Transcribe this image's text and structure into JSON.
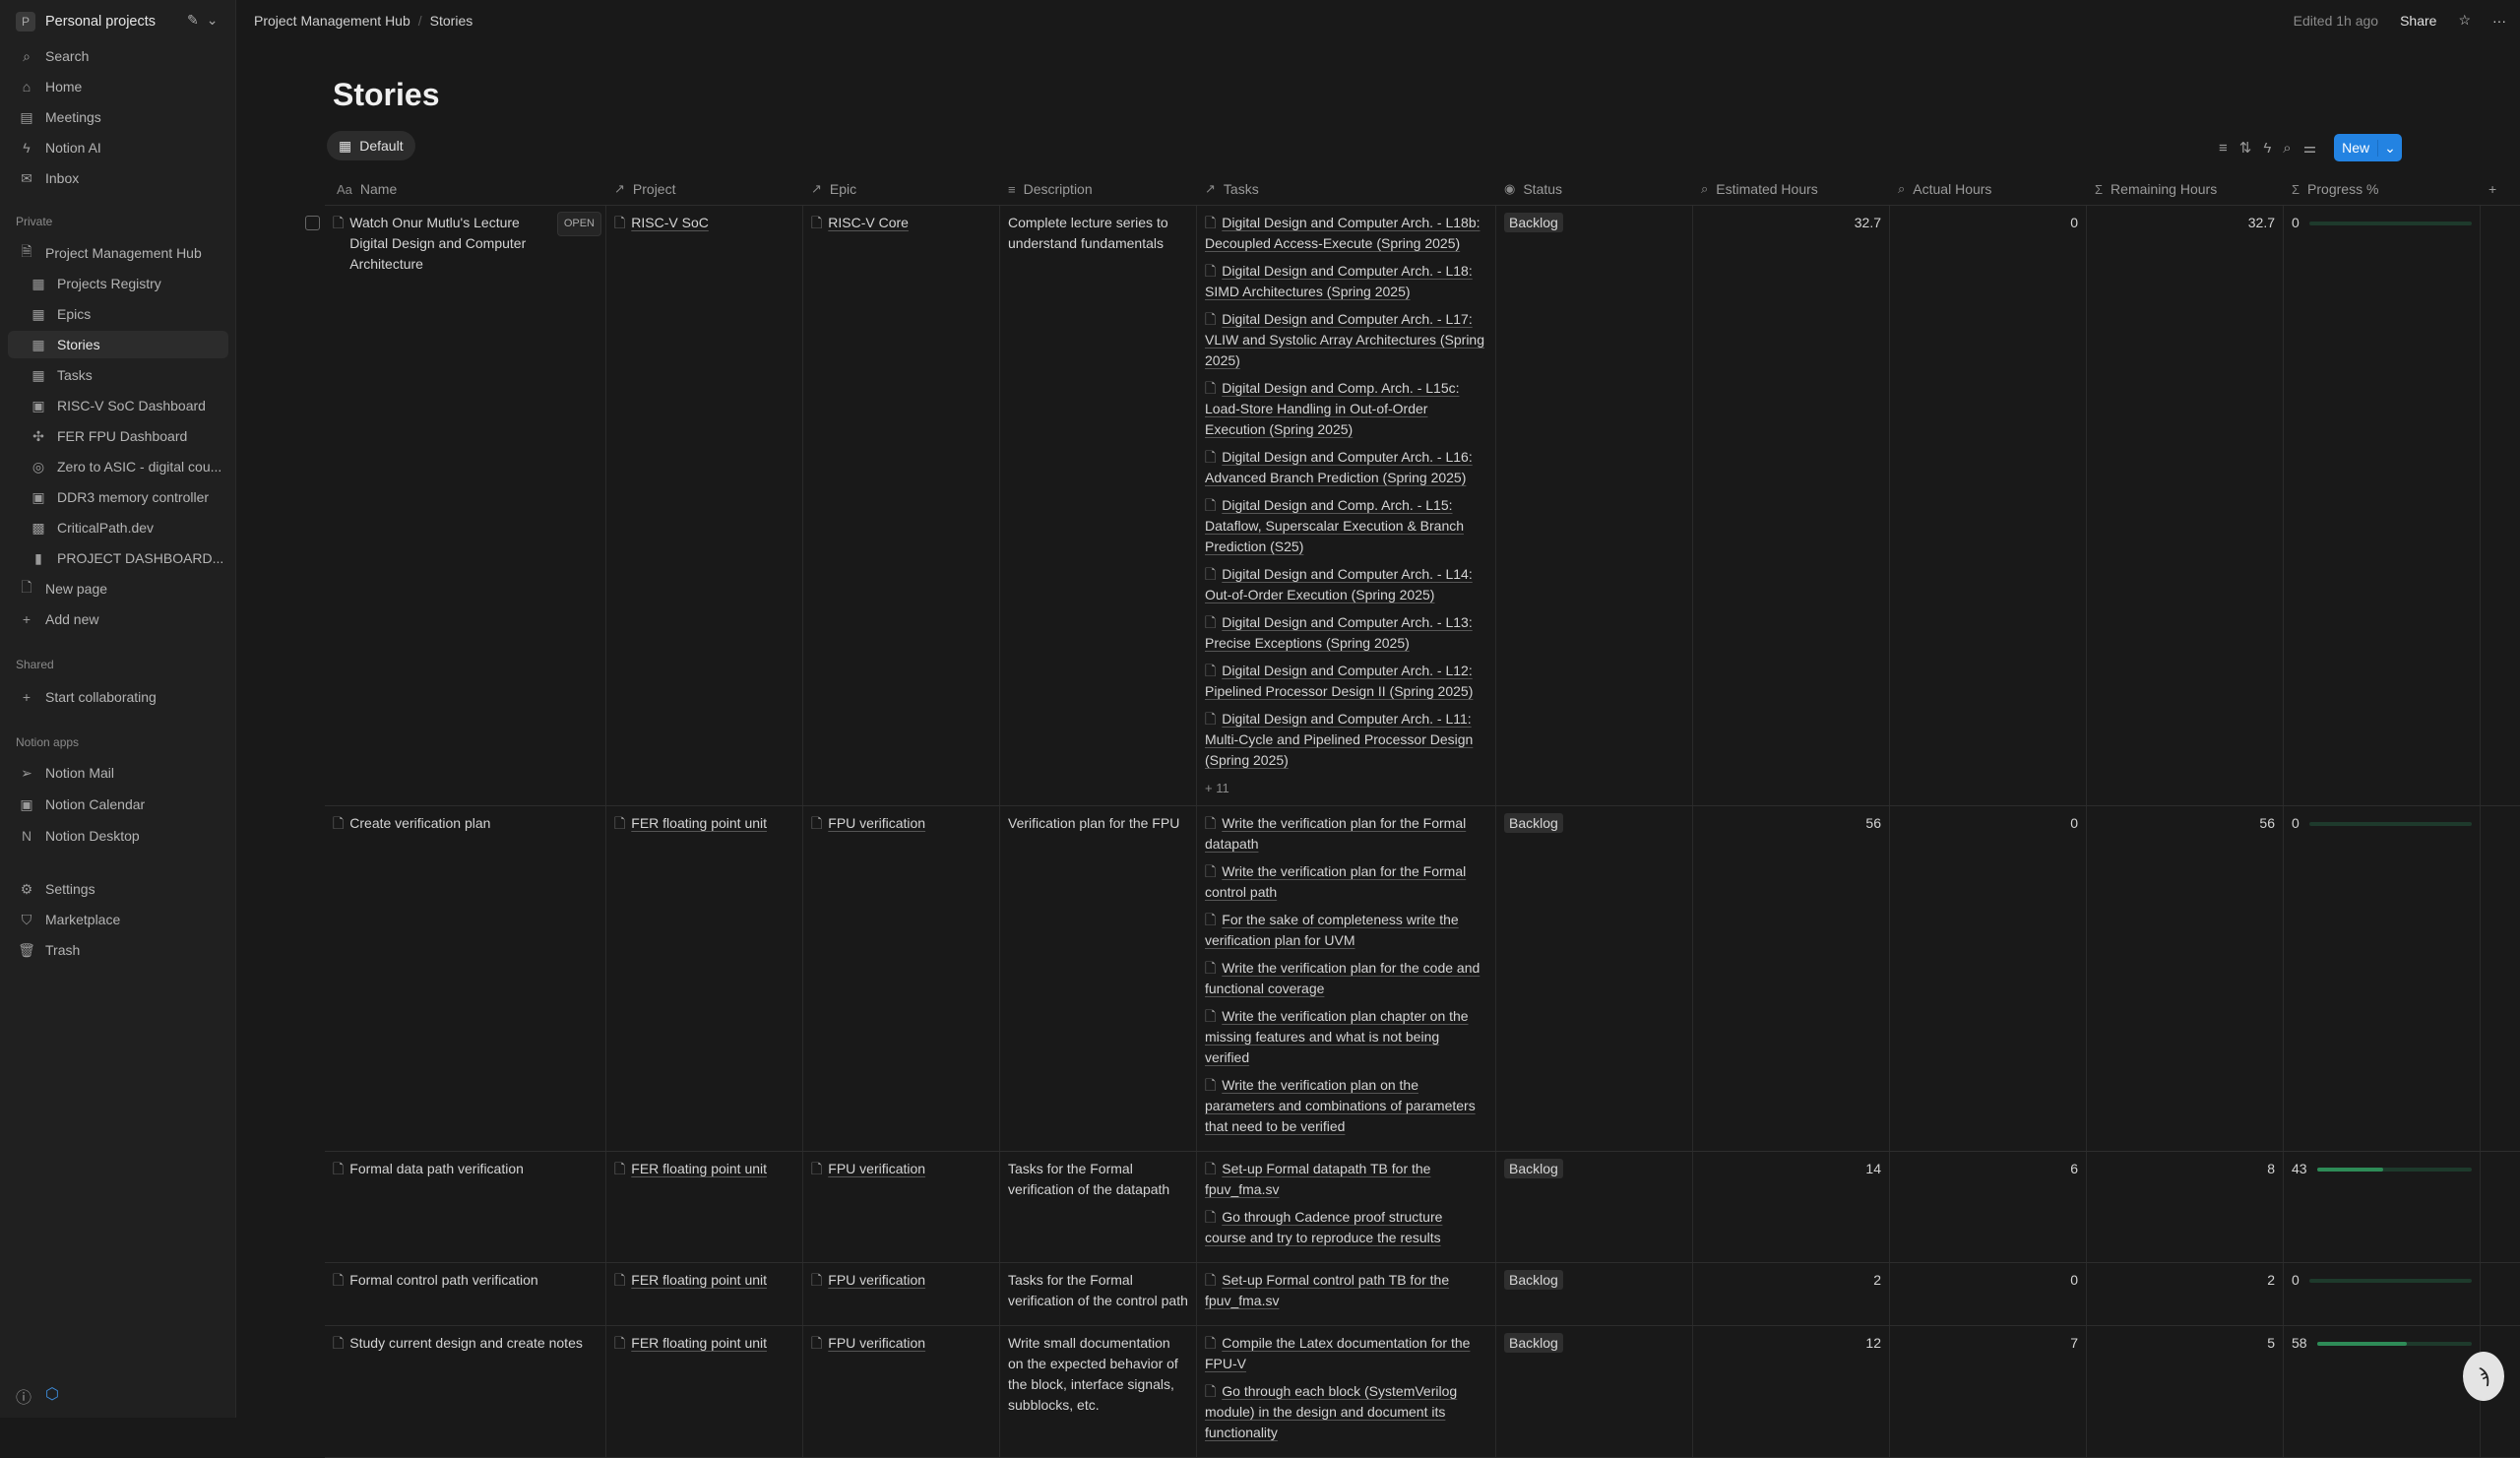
{
  "workspace": {
    "initial": "P",
    "name": "Personal projects"
  },
  "sidebar": {
    "top": [
      {
        "icon": "search-icon",
        "g": "⌕",
        "label": "Search"
      },
      {
        "icon": "home-icon",
        "g": "⌂",
        "label": "Home"
      },
      {
        "icon": "meetings-icon",
        "g": "▤",
        "label": "Meetings"
      },
      {
        "icon": "notion-ai-icon",
        "g": "ϟ",
        "label": "Notion AI"
      },
      {
        "icon": "inbox-icon",
        "g": "✉",
        "label": "Inbox"
      }
    ],
    "private_label": "Private",
    "private": [
      {
        "label": "Project Management Hub",
        "g": "🗎",
        "sub": false
      },
      {
        "label": "Projects Registry",
        "g": "▦",
        "sub": true
      },
      {
        "label": "Epics",
        "g": "▦",
        "sub": true
      },
      {
        "label": "Stories",
        "g": "▦",
        "sub": true,
        "active": true
      },
      {
        "label": "Tasks",
        "g": "▦",
        "sub": true
      },
      {
        "label": "RISC-V SoC Dashboard",
        "g": "▣",
        "sub": true
      },
      {
        "label": "FER FPU Dashboard",
        "g": "✣",
        "sub": true
      },
      {
        "label": "Zero to ASIC - digital cou...",
        "g": "◎",
        "sub": true
      },
      {
        "label": "DDR3 memory controller",
        "g": "▣",
        "sub": true
      },
      {
        "label": "CriticalPath.dev",
        "g": "▩",
        "sub": true
      },
      {
        "label": "PROJECT DASHBOARD...",
        "g": "▮",
        "sub": true
      },
      {
        "label": "New page",
        "g": "🗋",
        "sub": false
      },
      {
        "label": "Add new",
        "g": "+",
        "sub": false
      }
    ],
    "shared_label": "Shared",
    "shared": [
      {
        "label": "Start collaborating",
        "g": "+"
      }
    ],
    "apps_label": "Notion apps",
    "apps": [
      {
        "label": "Notion Mail",
        "g": "➢"
      },
      {
        "label": "Notion Calendar",
        "g": "▣"
      },
      {
        "label": "Notion Desktop",
        "g": "N"
      }
    ],
    "bottom": [
      {
        "label": "Settings",
        "g": "⚙"
      },
      {
        "label": "Marketplace",
        "g": "⛉"
      },
      {
        "label": "Trash",
        "g": "🗑"
      }
    ]
  },
  "breadcrumb": [
    "Project Management Hub",
    "Stories"
  ],
  "topright": {
    "edited": "Edited 1h ago",
    "share": "Share"
  },
  "page": {
    "title": "Stories",
    "view": "Default",
    "new_label": "New"
  },
  "columns": [
    {
      "label": "Name",
      "icon": "Aa"
    },
    {
      "label": "Project",
      "icon": "↗"
    },
    {
      "label": "Epic",
      "icon": "↗"
    },
    {
      "label": "Description",
      "icon": "≡"
    },
    {
      "label": "Tasks",
      "icon": "↗"
    },
    {
      "label": "Status",
      "icon": "◉"
    },
    {
      "label": "Estimated Hours",
      "icon": "⌕"
    },
    {
      "label": "Actual Hours",
      "icon": "⌕"
    },
    {
      "label": "Remaining Hours",
      "icon": "Σ"
    },
    {
      "label": "Progress %",
      "icon": "Σ"
    }
  ],
  "open_label": "OPEN",
  "rows": [
    {
      "name": "Watch Onur Mutlu's Lecture Digital Design and Computer Architecture",
      "project": "RISC-V SoC",
      "epic": "RISC-V Core",
      "description": "Complete lecture series to understand fundamentals",
      "tasks": [
        "Digital Design and Computer Arch. - L18b: Decoupled Access-Execute (Spring 2025)",
        "Digital Design and Computer Arch. - L18: SIMD Architectures (Spring 2025)",
        "Digital Design and Computer Arch. - L17: VLIW and Systolic Array Architectures (Spring 2025)",
        "Digital Design and Comp. Arch. - L15c: Load-Store Handling in Out-of-Order Execution (Spring 2025)",
        "Digital Design and Computer Arch. - L16: Advanced Branch Prediction (Spring 2025)",
        "Digital Design and Comp. Arch. - L15: Dataflow, Superscalar Execution & Branch Prediction (S25)",
        "Digital Design and Computer Arch. - L14: Out-of-Order Execution (Spring 2025)",
        "Digital Design and Computer Arch. - L13: Precise Exceptions (Spring 2025)",
        "Digital Design and Computer Arch. - L12: Pipelined Processor Design II (Spring 2025)",
        "Digital Design and Computer Arch. - L11: Multi-Cycle and Pipelined Processor Design (Spring 2025)"
      ],
      "more": "+ 11",
      "status": "Backlog",
      "estimated": "32.7",
      "actual": "0",
      "remaining": "32.7",
      "progress": 0
    },
    {
      "name": "Create verification plan",
      "project": "FER floating point unit",
      "epic": "FPU verification",
      "description": "Verification plan for the FPU",
      "tasks": [
        "Write the verification plan for the Formal datapath",
        "Write the verification plan for the Formal control path",
        "For the sake of completeness write the verification plan for UVM",
        "Write the verification plan for the code and functional coverage",
        "Write the verification plan chapter on the missing features and what is not being verified",
        "Write the verification plan on the parameters and combinations of parameters that need to be verified"
      ],
      "status": "Backlog",
      "estimated": "56",
      "actual": "0",
      "remaining": "56",
      "progress": 0
    },
    {
      "name": "Formal data path verification",
      "project": "FER floating point unit",
      "epic": "FPU verification",
      "description": "Tasks for the Formal verification of the datapath",
      "tasks": [
        "Set-up Formal datapath TB for the fpuv_fma.sv",
        "Go through Cadence proof structure course and try to reproduce the results"
      ],
      "status": "Backlog",
      "estimated": "14",
      "actual": "6",
      "remaining": "8",
      "progress": 43
    },
    {
      "name": "Formal control path verification",
      "project": "FER floating point unit",
      "epic": "FPU verification",
      "description": "Tasks for the Formal verification of the control path",
      "tasks": [
        "Set-up Formal control path TB for the fpuv_fma.sv"
      ],
      "status": "Backlog",
      "estimated": "2",
      "actual": "0",
      "remaining": "2",
      "progress": 0
    },
    {
      "name": "Study current design and create notes",
      "project": "FER floating point unit",
      "epic": "FPU verification",
      "description": "Write small documentation on the expected behavior of the block, interface signals, subblocks, etc.",
      "tasks": [
        "Compile the Latex documentation for the FPU-V",
        "Go through each block (SystemVerilog module) in the design and document its functionality"
      ],
      "status": "Backlog",
      "estimated": "12",
      "actual": "7",
      "remaining": "5",
      "progress": 58
    }
  ],
  "colors": {
    "accent": "#2383e2",
    "progress": "#2e8b57",
    "bg": "#191919",
    "sidebar": "#202020"
  }
}
